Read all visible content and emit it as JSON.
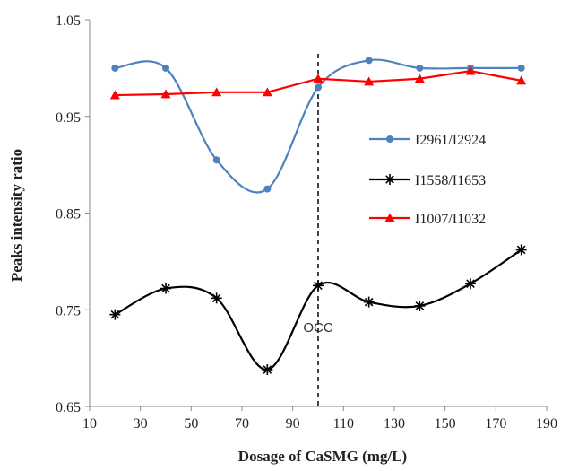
{
  "chart_data": {
    "type": "line",
    "xlabel": "Dosage of CaSMG (mg/L)",
    "ylabel": "Peaks intensity ratio",
    "xlim": [
      10,
      190
    ],
    "ylim": [
      0.65,
      1.05
    ],
    "x_ticks": [
      10,
      30,
      50,
      70,
      90,
      110,
      130,
      150,
      170,
      190
    ],
    "y_ticks": [
      0.65,
      0.75,
      0.85,
      0.95,
      1.05
    ],
    "x_tick_labels": [
      "10",
      "30",
      "50",
      "70",
      "90",
      "110",
      "130",
      "150",
      "170",
      "190"
    ],
    "y_tick_labels": [
      "0.65",
      "0.75",
      "0.85",
      "0.95",
      "1.05"
    ],
    "grid": false,
    "legend_position": "right",
    "series": [
      {
        "name": "I2961/I2924",
        "color": "#4f81bd",
        "marker": "circle",
        "smooth": true,
        "x": [
          20,
          40,
          60,
          80,
          100,
          120,
          140,
          160,
          180
        ],
        "y": [
          1.0,
          1.0,
          0.905,
          0.875,
          0.98,
          1.008,
          1.0,
          1.0,
          1.0
        ]
      },
      {
        "name": "I1558/I1653",
        "color": "#000000",
        "marker": "star",
        "smooth": true,
        "x": [
          20,
          40,
          60,
          80,
          100,
          120,
          140,
          160,
          180
        ],
        "y": [
          0.745,
          0.772,
          0.762,
          0.688,
          0.775,
          0.758,
          0.754,
          0.777,
          0.812
        ]
      },
      {
        "name": "I1007/I1032",
        "color": "#ff0000",
        "marker": "triangle",
        "smooth": false,
        "x": [
          20,
          40,
          60,
          80,
          100,
          120,
          140,
          160,
          180
        ],
        "y": [
          0.972,
          0.973,
          0.975,
          0.975,
          0.989,
          0.986,
          0.989,
          0.997,
          0.987
        ]
      }
    ],
    "annotations": [
      {
        "type": "vline",
        "x": 100,
        "style": "dashed",
        "label": "OCC",
        "label_y": 0.742
      }
    ]
  }
}
